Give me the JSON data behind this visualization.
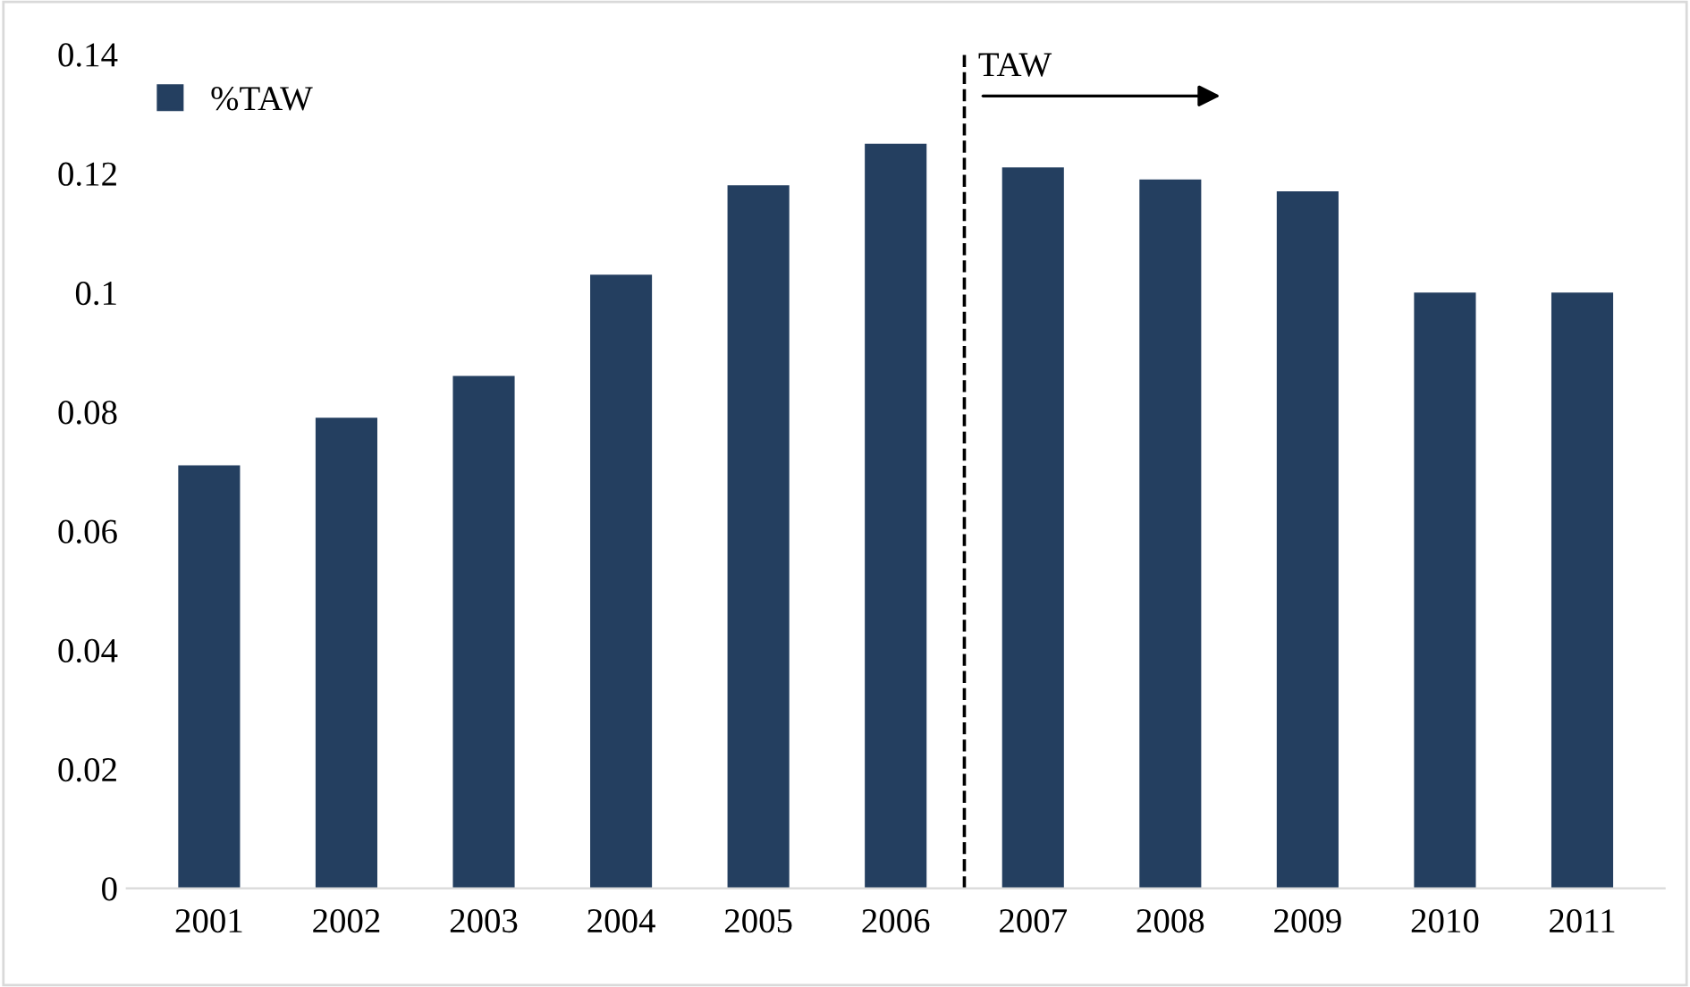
{
  "chart_data": {
    "type": "bar",
    "categories": [
      "2001",
      "2002",
      "2003",
      "2004",
      "2005",
      "2006",
      "2007",
      "2008",
      "2009",
      "2010",
      "2011"
    ],
    "series": [
      {
        "name": "%TAW",
        "color": "#243f60",
        "values": [
          0.071,
          0.079,
          0.086,
          0.103,
          0.118,
          0.125,
          0.121,
          0.119,
          0.117,
          0.1,
          0.1
        ]
      }
    ],
    "ylim": [
      0,
      0.14
    ],
    "yticks": [
      0,
      {
        "value": 0.02,
        "label": "0.02"
      },
      {
        "value": 0.04,
        "label": "0.04"
      },
      {
        "value": 0.06,
        "label": "0.06"
      },
      {
        "value": 0.08,
        "label": "0.08"
      },
      {
        "value": 0.1,
        "label": "0.1"
      },
      {
        "value": 0.12,
        "label": "0.12"
      },
      {
        "value": 0.14,
        "label": "0.14"
      }
    ],
    "annotations": [
      "TAW"
    ],
    "grid": false,
    "legend": "top left"
  }
}
